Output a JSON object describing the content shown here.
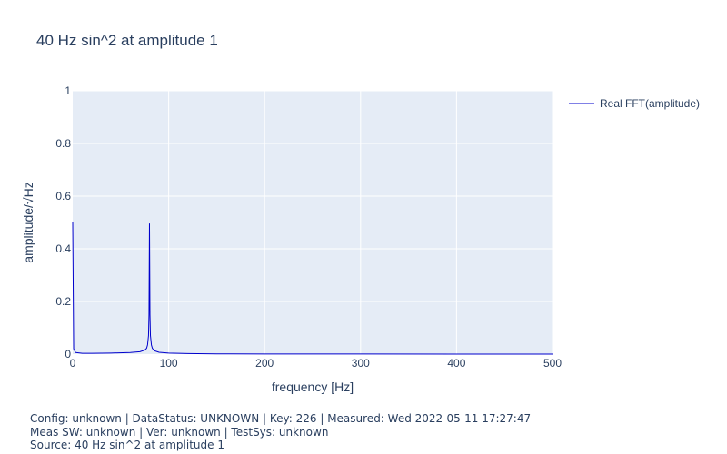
{
  "chart_data": {
    "type": "line",
    "title": "40 Hz sin^2 at amplitude 1",
    "xlabel": "frequency [Hz]",
    "ylabel": "amplitude/√Hz",
    "xlim": [
      0,
      500
    ],
    "ylim": [
      0,
      1
    ],
    "x_ticks": [
      0,
      100,
      200,
      300,
      400,
      500
    ],
    "y_ticks": [
      0,
      0.2,
      0.4,
      0.6,
      0.8,
      1
    ],
    "x_tick_labels": [
      "0",
      "100",
      "200",
      "300",
      "400",
      "500"
    ],
    "y_tick_labels": [
      "0",
      "0.2",
      "0.4",
      "0.6",
      "0.8",
      "1"
    ],
    "grid": true,
    "legend_position": "top-right",
    "series": [
      {
        "name": "Real FFT(amplitude)",
        "color": "#0000cc",
        "x": [
          0,
          1,
          3,
          10,
          20,
          40,
          60,
          70,
          75,
          77,
          78,
          79,
          79.5,
          80,
          80.5,
          81,
          82,
          83,
          85,
          90,
          100,
          120,
          150,
          200,
          300,
          400,
          500
        ],
        "y": [
          0.5,
          0.02,
          0.006,
          0.003,
          0.003,
          0.004,
          0.006,
          0.009,
          0.015,
          0.022,
          0.035,
          0.07,
          0.15,
          0.495,
          0.15,
          0.07,
          0.035,
          0.022,
          0.013,
          0.007,
          0.004,
          0.002,
          0.001,
          0.0005,
          0.0003,
          0.0002,
          0.0002
        ]
      }
    ]
  },
  "footer": {
    "line1": "Config: unknown | DataStatus: UNKNOWN | Key: 226 | Measured: Wed 2022-05-11 17:27:47",
    "line2": "Meas SW: unknown | Ver: unknown | TestSys: unknown",
    "line3": "Source: 40 Hz sin^2 at amplitude 1"
  },
  "colors": {
    "plot_background": "#e5ecf6",
    "gridline": "#ffffff",
    "text": "#2a3f5f"
  }
}
